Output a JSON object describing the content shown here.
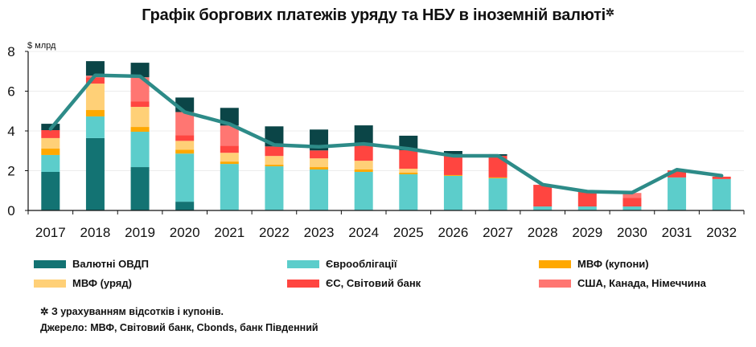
{
  "chart_data": {
    "type": "bar",
    "stacked": true,
    "title": "Графік боргових платежів уряду та НБУ в іноземній валюті",
    "title_marker": "✲",
    "ylabel": "$ млрд",
    "xlabel": "",
    "ylim": [
      0,
      8
    ],
    "yticks": [
      0,
      2,
      4,
      6,
      8
    ],
    "grid": true,
    "legend_position": "bottom",
    "categories": [
      "2017",
      "2018",
      "2019",
      "2020",
      "2021",
      "2022",
      "2023",
      "2024",
      "2025",
      "2026",
      "2027",
      "2028",
      "2029",
      "2030",
      "2031",
      "2032"
    ],
    "series": [
      {
        "name": "Валютні ОВДП",
        "color": "#137373",
        "values": [
          1.94,
          3.64,
          2.18,
          0.44,
          0,
          0,
          0,
          0,
          0,
          0,
          0,
          0,
          0,
          0,
          0,
          0
        ]
      },
      {
        "name": "Єврооблігації",
        "color": "#5ccdcb",
        "values": [
          0.85,
          1.09,
          1.78,
          2.42,
          2.34,
          2.22,
          2.06,
          1.94,
          1.82,
          1.74,
          1.62,
          0.2,
          0.2,
          0.2,
          1.66,
          1.58
        ]
      },
      {
        "name": "МВФ (купони)",
        "color": "#ffa800",
        "values": [
          0.32,
          0.32,
          0.24,
          0.2,
          0.12,
          0.08,
          0.12,
          0.12,
          0.08,
          0.04,
          0.04,
          0,
          0,
          0,
          0,
          0
        ]
      },
      {
        "name": "МВФ (уряд)",
        "color": "#ffd077",
        "values": [
          0.53,
          1.33,
          1.01,
          0.44,
          0.44,
          0.44,
          0.44,
          0.44,
          0.2,
          0,
          0,
          0,
          0,
          0,
          0,
          0
        ]
      },
      {
        "name": "ЄС, Світовий банк",
        "color": "#ff4540",
        "values": [
          0.4,
          0.32,
          0.28,
          0.28,
          0.36,
          0.48,
          0.4,
          0.85,
          0.93,
          1.05,
          1.09,
          1.09,
          0.73,
          0.44,
          0.36,
          0.12
        ]
      },
      {
        "name": "США, Канада, Німеччина",
        "color": "#ff7672",
        "values": [
          0,
          0.08,
          1.21,
          1.17,
          1.01,
          0,
          0,
          0,
          0,
          0,
          0,
          0,
          0,
          0.24,
          0,
          0
        ]
      },
      {
        "name": "",
        "color": "#0b4547",
        "in_legend": false,
        "values": [
          0.32,
          0.73,
          0.73,
          0.73,
          0.89,
          1.01,
          1.05,
          0.93,
          0.73,
          0.16,
          0.08,
          0,
          0,
          0,
          0,
          0
        ]
      }
    ],
    "line": {
      "name": "",
      "color": "#2d8b88",
      "values": [
        4.1,
        6.8,
        6.75,
        4.95,
        4.35,
        3.3,
        3.2,
        3.35,
        3.1,
        2.75,
        2.75,
        1.3,
        0.95,
        0.9,
        2.05,
        1.75
      ]
    }
  },
  "legend": [
    {
      "label": "Валютні ОВДП",
      "color": "#137373"
    },
    {
      "label": "Єврооблігації",
      "color": "#5ccdcb"
    },
    {
      "label": "МВФ (купони)",
      "color": "#ffa800"
    },
    {
      "label": "МВФ (уряд)",
      "color": "#ffd077"
    },
    {
      "label": "ЄС, Світовий банк",
      "color": "#ff4540"
    },
    {
      "label": "США, Канада, Німеччина",
      "color": "#ff7672"
    }
  ],
  "footnotes": {
    "note": "✲ З урахуванням відсотків і купонів.",
    "source": "Джерело: МВФ, Світовий банк, Cbonds, банк Південний"
  }
}
